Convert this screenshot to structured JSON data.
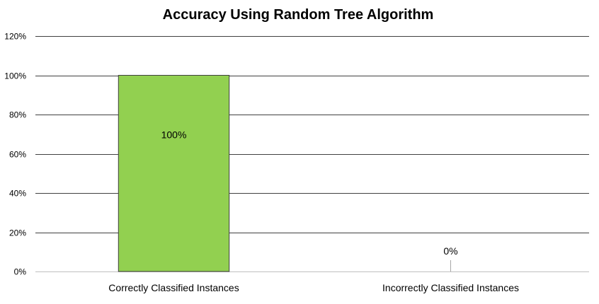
{
  "chart_data": {
    "type": "bar",
    "title": "Accuracy Using Random Tree Algorithm",
    "xlabel": "",
    "ylabel": "",
    "categories": [
      "Correctly Classified Instances",
      "Incorrectly Classified Instances"
    ],
    "values": [
      100,
      0
    ],
    "data_labels": [
      "100%",
      "0%"
    ],
    "yticks": [
      "0%",
      "20%",
      "40%",
      "60%",
      "80%",
      "100%",
      "120%"
    ],
    "ylim": [
      0,
      120
    ],
    "grid": true,
    "legend": "none",
    "colors": {
      "bar": "#92D050",
      "bar_border": "#404040",
      "grid": "#404040",
      "text": "#000000"
    }
  }
}
